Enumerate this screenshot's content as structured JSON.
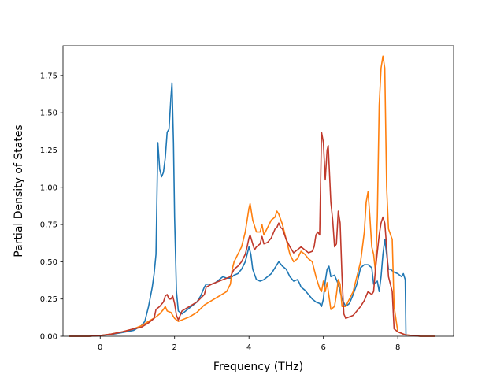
{
  "chart_data": {
    "type": "line",
    "title": "",
    "xlabel": "Frequency (THz)",
    "ylabel": "Partial Density of States",
    "xlim": [
      -1.0,
      9.5
    ],
    "ylim": [
      0.0,
      1.95
    ],
    "grid": false,
    "legend": "none",
    "xticks": [
      0,
      2,
      4,
      6,
      8
    ],
    "xtick_labels": [
      "0",
      "2",
      "4",
      "6",
      "8"
    ],
    "yticks": [
      0.0,
      0.25,
      0.5,
      0.75,
      1.0,
      1.25,
      1.5,
      1.75
    ],
    "ytick_labels": [
      "0.00",
      "0.25",
      "0.50",
      "0.75",
      "1.00",
      "1.25",
      "1.50",
      "1.75"
    ],
    "series": [
      {
        "color": "#1f77b4",
        "points": [
          [
            -0.85,
            0
          ],
          [
            -0.3,
            0
          ],
          [
            0,
            0.005
          ],
          [
            0.3,
            0.012
          ],
          [
            0.6,
            0.025
          ],
          [
            0.9,
            0.04
          ],
          [
            1.1,
            0.07
          ],
          [
            1.2,
            0.1
          ],
          [
            1.3,
            0.2
          ],
          [
            1.4,
            0.33
          ],
          [
            1.45,
            0.42
          ],
          [
            1.5,
            0.55
          ],
          [
            1.55,
            1.3
          ],
          [
            1.6,
            1.12
          ],
          [
            1.65,
            1.07
          ],
          [
            1.7,
            1.1
          ],
          [
            1.75,
            1.2
          ],
          [
            1.8,
            1.37
          ],
          [
            1.85,
            1.39
          ],
          [
            1.9,
            1.6
          ],
          [
            1.93,
            1.7
          ],
          [
            1.97,
            1.3
          ],
          [
            2.0,
            0.8
          ],
          [
            2.05,
            0.3
          ],
          [
            2.1,
            0.17
          ],
          [
            2.2,
            0.15
          ],
          [
            2.4,
            0.19
          ],
          [
            2.6,
            0.23
          ],
          [
            2.7,
            0.27
          ],
          [
            2.8,
            0.33
          ],
          [
            2.85,
            0.35
          ],
          [
            3.0,
            0.35
          ],
          [
            3.1,
            0.36
          ],
          [
            3.2,
            0.38
          ],
          [
            3.3,
            0.4
          ],
          [
            3.4,
            0.39
          ],
          [
            3.5,
            0.39
          ],
          [
            3.6,
            0.41
          ],
          [
            3.7,
            0.42
          ],
          [
            3.8,
            0.45
          ],
          [
            3.9,
            0.5
          ],
          [
            4.0,
            0.6
          ],
          [
            4.05,
            0.55
          ],
          [
            4.1,
            0.45
          ],
          [
            4.2,
            0.38
          ],
          [
            4.3,
            0.37
          ],
          [
            4.4,
            0.38
          ],
          [
            4.5,
            0.4
          ],
          [
            4.6,
            0.42
          ],
          [
            4.7,
            0.46
          ],
          [
            4.8,
            0.5
          ],
          [
            4.9,
            0.47
          ],
          [
            5.0,
            0.45
          ],
          [
            5.1,
            0.4
          ],
          [
            5.2,
            0.37
          ],
          [
            5.3,
            0.38
          ],
          [
            5.35,
            0.36
          ],
          [
            5.4,
            0.33
          ],
          [
            5.5,
            0.31
          ],
          [
            5.6,
            0.28
          ],
          [
            5.7,
            0.25
          ],
          [
            5.8,
            0.23
          ],
          [
            5.9,
            0.22
          ],
          [
            5.95,
            0.2
          ],
          [
            6.0,
            0.25
          ],
          [
            6.05,
            0.37
          ],
          [
            6.1,
            0.45
          ],
          [
            6.15,
            0.47
          ],
          [
            6.2,
            0.4
          ],
          [
            6.3,
            0.41
          ],
          [
            6.4,
            0.35
          ],
          [
            6.5,
            0.25
          ],
          [
            6.6,
            0.2
          ],
          [
            6.7,
            0.22
          ],
          [
            6.8,
            0.28
          ],
          [
            6.9,
            0.35
          ],
          [
            7.0,
            0.46
          ],
          [
            7.1,
            0.48
          ],
          [
            7.2,
            0.48
          ],
          [
            7.3,
            0.46
          ],
          [
            7.35,
            0.35
          ],
          [
            7.45,
            0.37
          ],
          [
            7.5,
            0.3
          ],
          [
            7.55,
            0.4
          ],
          [
            7.6,
            0.55
          ],
          [
            7.65,
            0.65
          ],
          [
            7.7,
            0.55
          ],
          [
            7.75,
            0.45
          ],
          [
            7.8,
            0.45
          ],
          [
            7.9,
            0.43
          ],
          [
            8.0,
            0.42
          ],
          [
            8.1,
            0.4
          ],
          [
            8.15,
            0.42
          ],
          [
            8.2,
            0.38
          ],
          [
            8.22,
            0.0
          ]
        ]
      },
      {
        "color": "#ff7f0e",
        "points": [
          [
            -0.85,
            0
          ],
          [
            -0.3,
            0
          ],
          [
            0,
            0.005
          ],
          [
            0.3,
            0.015
          ],
          [
            0.6,
            0.03
          ],
          [
            0.9,
            0.05
          ],
          [
            1.1,
            0.07
          ],
          [
            1.3,
            0.1
          ],
          [
            1.5,
            0.13
          ],
          [
            1.6,
            0.15
          ],
          [
            1.7,
            0.18
          ],
          [
            1.75,
            0.2
          ],
          [
            1.8,
            0.17
          ],
          [
            1.9,
            0.16
          ],
          [
            2.0,
            0.12
          ],
          [
            2.1,
            0.1
          ],
          [
            2.2,
            0.11
          ],
          [
            2.4,
            0.13
          ],
          [
            2.6,
            0.16
          ],
          [
            2.8,
            0.21
          ],
          [
            3.0,
            0.24
          ],
          [
            3.2,
            0.27
          ],
          [
            3.4,
            0.3
          ],
          [
            3.5,
            0.35
          ],
          [
            3.55,
            0.45
          ],
          [
            3.6,
            0.5
          ],
          [
            3.7,
            0.55
          ],
          [
            3.8,
            0.6
          ],
          [
            3.9,
            0.7
          ],
          [
            3.95,
            0.78
          ],
          [
            4.0,
            0.86
          ],
          [
            4.03,
            0.89
          ],
          [
            4.1,
            0.78
          ],
          [
            4.2,
            0.7
          ],
          [
            4.3,
            0.7
          ],
          [
            4.35,
            0.75
          ],
          [
            4.4,
            0.68
          ],
          [
            4.5,
            0.73
          ],
          [
            4.6,
            0.78
          ],
          [
            4.7,
            0.8
          ],
          [
            4.75,
            0.84
          ],
          [
            4.8,
            0.82
          ],
          [
            4.9,
            0.75
          ],
          [
            5.0,
            0.65
          ],
          [
            5.1,
            0.55
          ],
          [
            5.2,
            0.5
          ],
          [
            5.3,
            0.52
          ],
          [
            5.4,
            0.57
          ],
          [
            5.5,
            0.55
          ],
          [
            5.6,
            0.52
          ],
          [
            5.7,
            0.5
          ],
          [
            5.8,
            0.4
          ],
          [
            5.9,
            0.32
          ],
          [
            5.95,
            0.3
          ],
          [
            6.0,
            0.37
          ],
          [
            6.05,
            0.3
          ],
          [
            6.1,
            0.36
          ],
          [
            6.2,
            0.18
          ],
          [
            6.3,
            0.2
          ],
          [
            6.35,
            0.28
          ],
          [
            6.4,
            0.38
          ],
          [
            6.45,
            0.35
          ],
          [
            6.5,
            0.2
          ],
          [
            6.6,
            0.2
          ],
          [
            6.7,
            0.25
          ],
          [
            6.8,
            0.3
          ],
          [
            6.9,
            0.4
          ],
          [
            7.0,
            0.5
          ],
          [
            7.1,
            0.7
          ],
          [
            7.15,
            0.9
          ],
          [
            7.2,
            0.97
          ],
          [
            7.25,
            0.8
          ],
          [
            7.3,
            0.6
          ],
          [
            7.35,
            0.55
          ],
          [
            7.4,
            0.43
          ],
          [
            7.45,
            0.8
          ],
          [
            7.5,
            1.55
          ],
          [
            7.55,
            1.8
          ],
          [
            7.6,
            1.88
          ],
          [
            7.65,
            1.8
          ],
          [
            7.7,
            1.0
          ],
          [
            7.75,
            0.72
          ],
          [
            7.85,
            0.65
          ],
          [
            7.9,
            0.2
          ],
          [
            8.0,
            0.03
          ],
          [
            8.2,
            0.01
          ],
          [
            8.6,
            0
          ],
          [
            9.0,
            0
          ]
        ]
      },
      {
        "color": "#c0392b",
        "points": [
          [
            -0.85,
            0
          ],
          [
            -0.3,
            0
          ],
          [
            0,
            0.005
          ],
          [
            0.3,
            0.015
          ],
          [
            0.6,
            0.03
          ],
          [
            0.9,
            0.05
          ],
          [
            1.1,
            0.06
          ],
          [
            1.3,
            0.09
          ],
          [
            1.45,
            0.12
          ],
          [
            1.5,
            0.18
          ],
          [
            1.6,
            0.2
          ],
          [
            1.7,
            0.23
          ],
          [
            1.75,
            0.27
          ],
          [
            1.8,
            0.28
          ],
          [
            1.85,
            0.25
          ],
          [
            1.9,
            0.25
          ],
          [
            1.95,
            0.27
          ],
          [
            2.0,
            0.22
          ],
          [
            2.05,
            0.14
          ],
          [
            2.1,
            0.11
          ],
          [
            2.2,
            0.17
          ],
          [
            2.4,
            0.2
          ],
          [
            2.6,
            0.23
          ],
          [
            2.8,
            0.28
          ],
          [
            2.85,
            0.33
          ],
          [
            3.0,
            0.35
          ],
          [
            3.2,
            0.37
          ],
          [
            3.4,
            0.39
          ],
          [
            3.5,
            0.4
          ],
          [
            3.6,
            0.45
          ],
          [
            3.7,
            0.47
          ],
          [
            3.8,
            0.5
          ],
          [
            3.9,
            0.55
          ],
          [
            3.95,
            0.6
          ],
          [
            4.0,
            0.66
          ],
          [
            4.03,
            0.68
          ],
          [
            4.1,
            0.62
          ],
          [
            4.15,
            0.58
          ],
          [
            4.2,
            0.6
          ],
          [
            4.3,
            0.62
          ],
          [
            4.35,
            0.67
          ],
          [
            4.4,
            0.62
          ],
          [
            4.5,
            0.63
          ],
          [
            4.6,
            0.66
          ],
          [
            4.7,
            0.72
          ],
          [
            4.75,
            0.73
          ],
          [
            4.8,
            0.76
          ],
          [
            4.85,
            0.73
          ],
          [
            4.9,
            0.72
          ],
          [
            5.0,
            0.65
          ],
          [
            5.1,
            0.6
          ],
          [
            5.2,
            0.56
          ],
          [
            5.3,
            0.58
          ],
          [
            5.4,
            0.6
          ],
          [
            5.5,
            0.58
          ],
          [
            5.6,
            0.56
          ],
          [
            5.7,
            0.57
          ],
          [
            5.75,
            0.6
          ],
          [
            5.8,
            0.68
          ],
          [
            5.85,
            0.7
          ],
          [
            5.9,
            0.68
          ],
          [
            5.95,
            1.37
          ],
          [
            6.0,
            1.3
          ],
          [
            6.05,
            1.05
          ],
          [
            6.1,
            1.25
          ],
          [
            6.13,
            1.28
          ],
          [
            6.2,
            0.9
          ],
          [
            6.25,
            0.78
          ],
          [
            6.3,
            0.6
          ],
          [
            6.35,
            0.62
          ],
          [
            6.4,
            0.84
          ],
          [
            6.45,
            0.76
          ],
          [
            6.5,
            0.4
          ],
          [
            6.55,
            0.15
          ],
          [
            6.6,
            0.12
          ],
          [
            6.7,
            0.13
          ],
          [
            6.8,
            0.14
          ],
          [
            6.9,
            0.17
          ],
          [
            7.0,
            0.2
          ],
          [
            7.1,
            0.24
          ],
          [
            7.2,
            0.3
          ],
          [
            7.3,
            0.28
          ],
          [
            7.35,
            0.3
          ],
          [
            7.4,
            0.45
          ],
          [
            7.5,
            0.68
          ],
          [
            7.55,
            0.76
          ],
          [
            7.6,
            0.8
          ],
          [
            7.65,
            0.76
          ],
          [
            7.7,
            0.6
          ],
          [
            7.75,
            0.4
          ],
          [
            7.85,
            0.3
          ],
          [
            7.9,
            0.05
          ],
          [
            8.0,
            0.03
          ],
          [
            8.2,
            0.01
          ],
          [
            8.6,
            0
          ],
          [
            9.0,
            0
          ]
        ]
      }
    ]
  }
}
